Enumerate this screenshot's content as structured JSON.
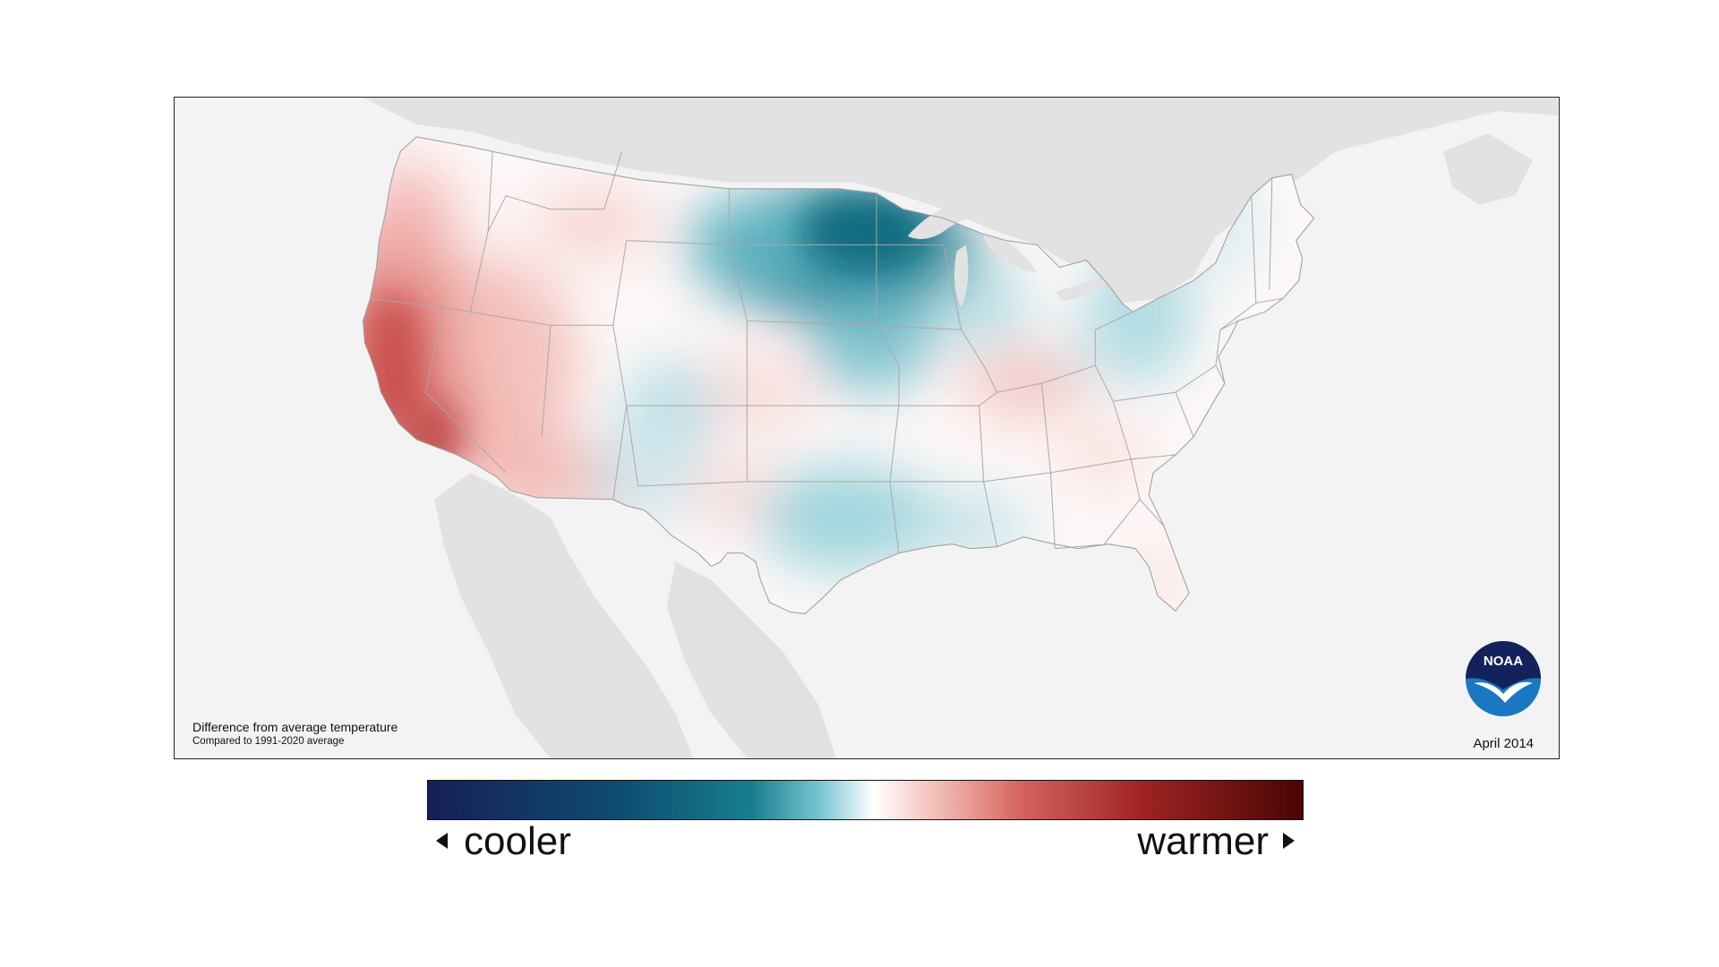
{
  "map": {
    "caption_title": "Difference from average temperature",
    "caption_subtitle": "Compared to 1991-2020 average",
    "date": "April 2014",
    "logo_text": "NOAA",
    "colors": {
      "background": "#f3f3f3",
      "surrounding_land": "#e2e2e2",
      "state_lines": "#a8a8a8",
      "coldest": "#0c6a80",
      "cool": "#5fb8c8",
      "neutral": "#ffffff",
      "warm": "#e58a86",
      "warmest": "#b83a3a"
    },
    "pattern_notes_icon": "temperature-anomaly-map"
  },
  "legend": {
    "cooler_label": "cooler",
    "warmer_label": "warmer",
    "gradient_colors": [
      "#161f57",
      "#0e4d72",
      "#177e8e",
      "#7cc7d3",
      "#ffffff",
      "#f6c8c2",
      "#d4625c",
      "#9e2222",
      "#4a0404"
    ]
  }
}
